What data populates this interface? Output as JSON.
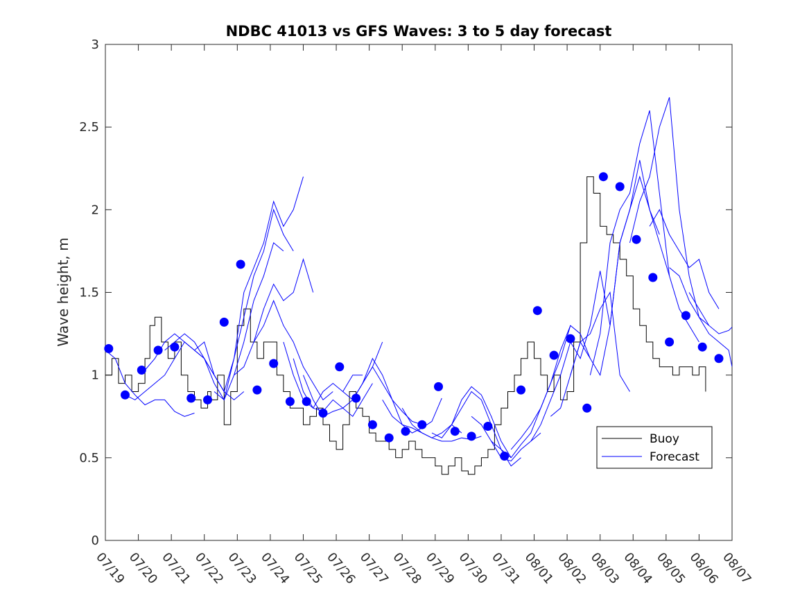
{
  "chart_data": {
    "type": "line",
    "title": "NDBC 41013 vs GFS Waves: 3 to 5 day forecast",
    "xlabel": "",
    "ylabel": "Wave height, m",
    "x_unit": "days since 07/19",
    "xlim": [
      0,
      19
    ],
    "ylim": [
      0,
      3
    ],
    "yticks": [
      0,
      0.5,
      1,
      1.5,
      2,
      2.5,
      3
    ],
    "xtick_labels": [
      "07/19",
      "07/20",
      "07/21",
      "07/22",
      "07/23",
      "07/24",
      "07/25",
      "07/26",
      "07/27",
      "07/28",
      "07/29",
      "07/30",
      "07/31",
      "08/01",
      "08/02",
      "08/03",
      "08/04",
      "08/05",
      "08/06",
      "08/07"
    ],
    "grid": false,
    "legend_position": "lower-right",
    "colors": {
      "buoy": "#000000",
      "forecast": "#0000ff",
      "points": "#0000ff"
    },
    "series": [
      {
        "name": "Buoy",
        "style": "line",
        "x": [
          0,
          0.2,
          0.4,
          0.6,
          0.8,
          1.0,
          1.2,
          1.35,
          1.5,
          1.7,
          1.9,
          2.1,
          2.3,
          2.5,
          2.7,
          2.9,
          3.1,
          3.2,
          3.4,
          3.6,
          3.8,
          4.0,
          4.2,
          4.4,
          4.6,
          4.8,
          5.0,
          5.2,
          5.4,
          5.6,
          5.8,
          6.0,
          6.2,
          6.4,
          6.6,
          6.8,
          7.0,
          7.2,
          7.4,
          7.6,
          7.8,
          8.0,
          8.2,
          8.4,
          8.6,
          8.8,
          9.0,
          9.2,
          9.4,
          9.6,
          9.8,
          10.0,
          10.2,
          10.4,
          10.6,
          10.8,
          11.0,
          11.2,
          11.4,
          11.6,
          11.8,
          12.0,
          12.2,
          12.4,
          12.6,
          12.8,
          13.0,
          13.2,
          13.4,
          13.6,
          13.8,
          14.0,
          14.2,
          14.4,
          14.6,
          14.8,
          15.0,
          15.2,
          15.4,
          15.6,
          15.8,
          16.0,
          16.2,
          16.4,
          16.6,
          16.8,
          17.0,
          17.2,
          17.4,
          17.6,
          17.8,
          18.0,
          18.2
        ],
        "y": [
          1.0,
          1.1,
          0.95,
          1.0,
          0.9,
          0.95,
          1.1,
          1.3,
          1.35,
          1.2,
          1.1,
          1.2,
          1.0,
          0.9,
          0.85,
          0.8,
          0.9,
          0.85,
          1.0,
          0.7,
          0.9,
          1.3,
          1.4,
          1.2,
          1.1,
          1.2,
          1.2,
          1.0,
          0.9,
          0.8,
          0.8,
          0.7,
          0.75,
          0.8,
          0.7,
          0.6,
          0.55,
          0.7,
          0.9,
          0.8,
          0.75,
          0.65,
          0.6,
          0.6,
          0.55,
          0.5,
          0.55,
          0.6,
          0.55,
          0.5,
          0.5,
          0.45,
          0.4,
          0.45,
          0.5,
          0.42,
          0.4,
          0.45,
          0.5,
          0.55,
          0.7,
          0.8,
          0.9,
          1.0,
          1.1,
          1.2,
          1.1,
          1.0,
          0.9,
          1.0,
          0.85,
          0.9,
          1.2,
          1.8,
          2.2,
          2.1,
          1.9,
          1.85,
          1.8,
          1.7,
          1.6,
          1.4,
          1.3,
          1.2,
          1.1,
          1.05,
          1.05,
          1.0,
          1.05,
          1.05,
          1.0,
          1.05,
          0.9
        ]
      },
      {
        "name": "Forecast",
        "style": "line",
        "segments": [
          {
            "x": [
              0,
              0.3,
              0.6,
              0.9,
              1.2,
              1.5,
              1.8,
              2.1,
              2.4,
              2.7
            ],
            "y": [
              1.15,
              1.1,
              0.95,
              0.88,
              0.82,
              0.85,
              0.85,
              0.78,
              0.75,
              0.77
            ]
          },
          {
            "x": [
              0.6,
              0.9,
              1.2,
              1.5,
              1.8,
              2.1,
              2.4,
              2.7,
              3.0
            ],
            "y": [
              0.88,
              0.85,
              0.9,
              0.95,
              1.0,
              1.1,
              1.2,
              1.15,
              1.1
            ]
          },
          {
            "x": [
              1.2,
              1.5,
              1.8,
              2.1,
              2.4,
              2.7,
              3.0,
              3.3,
              3.6
            ],
            "y": [
              1.03,
              1.1,
              1.2,
              1.25,
              1.2,
              1.15,
              1.1,
              1.0,
              0.9
            ]
          },
          {
            "x": [
              1.8,
              2.1,
              2.4,
              2.7,
              3.0,
              3.3,
              3.6,
              3.9,
              4.2
            ],
            "y": [
              1.15,
              1.2,
              1.25,
              1.2,
              1.1,
              1.0,
              0.9,
              0.85,
              0.9
            ]
          },
          {
            "x": [
              2.7,
              3.0,
              3.3,
              3.6,
              3.9,
              4.2,
              4.5,
              4.8,
              5.1,
              5.4,
              5.7,
              6.0
            ],
            "y": [
              1.15,
              1.2,
              1.0,
              0.9,
              1.1,
              1.5,
              1.65,
              1.8,
              2.05,
              1.9,
              2.0,
              2.2
            ]
          },
          {
            "x": [
              3.0,
              3.3,
              3.6,
              3.9,
              4.2,
              4.5,
              4.8,
              5.1,
              5.4,
              5.7
            ],
            "y": [
              1.1,
              0.95,
              0.85,
              1.1,
              1.35,
              1.6,
              1.75,
              2.0,
              1.85,
              1.75
            ]
          },
          {
            "x": [
              3.3,
              3.6,
              3.9,
              4.2,
              4.5,
              4.8,
              5.1,
              5.4
            ],
            "y": [
              0.9,
              0.85,
              1.0,
              1.2,
              1.45,
              1.6,
              1.8,
              1.75
            ]
          },
          {
            "x": [
              3.9,
              4.2,
              4.5,
              4.8,
              5.1,
              5.4,
              5.7,
              6.0,
              6.3
            ],
            "y": [
              1.0,
              1.05,
              1.2,
              1.4,
              1.55,
              1.45,
              1.5,
              1.7,
              1.5
            ]
          },
          {
            "x": [
              4.5,
              4.8,
              5.1,
              5.4,
              5.7,
              6.0,
              6.3,
              6.6,
              6.9
            ],
            "y": [
              1.2,
              1.3,
              1.45,
              1.3,
              1.2,
              1.05,
              0.95,
              0.85,
              0.9
            ]
          },
          {
            "x": [
              5.4,
              5.7,
              6.0,
              6.3,
              6.6,
              6.9,
              7.2,
              7.5,
              7.8
            ],
            "y": [
              1.2,
              1.0,
              0.85,
              0.8,
              0.9,
              0.95,
              0.9,
              1.0,
              1.0
            ]
          },
          {
            "x": [
              5.7,
              6.0,
              6.3,
              6.6,
              6.9,
              7.2,
              7.5,
              7.8,
              8.1
            ],
            "y": [
              1.1,
              0.9,
              0.8,
              0.78,
              0.85,
              0.8,
              0.75,
              0.85,
              0.95
            ]
          },
          {
            "x": [
              6.0,
              6.3,
              6.6,
              6.9,
              7.2,
              7.5,
              7.8,
              8.1,
              8.4
            ],
            "y": [
              1.0,
              0.85,
              0.75,
              0.78,
              0.8,
              0.85,
              0.95,
              1.05,
              1.2
            ]
          },
          {
            "x": [
              7.2,
              7.5,
              7.8,
              8.1,
              8.4,
              8.7,
              9.0,
              9.3,
              9.6
            ],
            "y": [
              0.9,
              0.85,
              0.95,
              1.1,
              1.0,
              0.85,
              0.78,
              0.72,
              0.7
            ]
          },
          {
            "x": [
              7.8,
              8.1,
              8.4,
              8.7,
              9.0,
              9.3,
              9.6,
              9.9,
              10.2
            ],
            "y": [
              0.95,
              1.05,
              0.95,
              0.85,
              0.7,
              0.65,
              0.68,
              0.72,
              0.86
            ]
          },
          {
            "x": [
              8.4,
              8.7,
              9.0,
              9.3,
              9.6,
              9.9,
              10.2,
              10.5,
              10.8
            ],
            "y": [
              0.85,
              0.75,
              0.7,
              0.68,
              0.65,
              0.62,
              0.65,
              0.7,
              0.65
            ]
          },
          {
            "x": [
              9.0,
              9.3,
              9.6,
              9.9,
              10.2,
              10.5,
              10.8,
              11.1,
              11.4
            ],
            "y": [
              0.8,
              0.7,
              0.65,
              0.62,
              0.6,
              0.6,
              0.62,
              0.61,
              0.63
            ]
          },
          {
            "x": [
              9.9,
              10.2,
              10.5,
              10.8,
              11.1,
              11.4,
              11.7,
              12.0,
              12.3
            ],
            "y": [
              0.65,
              0.62,
              0.7,
              0.85,
              0.93,
              0.88,
              0.75,
              0.6,
              0.5
            ]
          },
          {
            "x": [
              10.5,
              10.8,
              11.1,
              11.4,
              11.7,
              12.0,
              12.3,
              12.6
            ],
            "y": [
              0.7,
              0.8,
              0.9,
              0.85,
              0.7,
              0.55,
              0.45,
              0.5
            ]
          },
          {
            "x": [
              11.1,
              11.4,
              11.7,
              12.0,
              12.3,
              12.6,
              12.9,
              13.2
            ],
            "y": [
              0.75,
              0.7,
              0.6,
              0.5,
              0.48,
              0.55,
              0.6,
              0.65
            ]
          },
          {
            "x": [
              11.7,
              12.0,
              12.3,
              12.6,
              12.9,
              13.2,
              13.5,
              13.8,
              14.1
            ],
            "y": [
              0.6,
              0.55,
              0.5,
              0.58,
              0.65,
              0.8,
              0.95,
              1.1,
              1.3
            ]
          },
          {
            "x": [
              12.3,
              12.6,
              12.9,
              13.2,
              13.5,
              13.8,
              14.1,
              14.4,
              14.7
            ],
            "y": [
              0.55,
              0.62,
              0.7,
              0.8,
              0.95,
              1.15,
              1.3,
              1.25,
              1.1
            ]
          },
          {
            "x": [
              12.9,
              13.2,
              13.5,
              13.8,
              14.1,
              14.4,
              14.7,
              15.0,
              15.3
            ],
            "y": [
              0.6,
              0.7,
              0.85,
              1.0,
              1.2,
              1.1,
              1.3,
              1.63,
              1.3
            ]
          },
          {
            "x": [
              13.5,
              13.8,
              14.1,
              14.4,
              14.7,
              15.0,
              15.3,
              15.6,
              15.9
            ],
            "y": [
              0.75,
              0.8,
              1.0,
              1.2,
              1.25,
              1.4,
              1.5,
              1.0,
              0.9
            ]
          },
          {
            "x": [
              14.1,
              14.4,
              14.7,
              15.0,
              15.3,
              15.6,
              15.9,
              16.2,
              16.5,
              16.8
            ],
            "y": [
              1.0,
              1.2,
              1.1,
              1.0,
              1.3,
              1.8,
              2.0,
              2.2,
              2.0,
              1.85
            ]
          },
          {
            "x": [
              14.7,
              15.0,
              15.3,
              15.6,
              15.9,
              16.2,
              16.5,
              16.8,
              17.1
            ],
            "y": [
              1.0,
              1.25,
              1.8,
              2.0,
              2.1,
              2.4,
              2.6,
              2.1,
              1.6
            ]
          },
          {
            "x": [
              15.3,
              15.6,
              15.9,
              16.2,
              16.5,
              16.8,
              17.1,
              17.4,
              17.7,
              18.0
            ],
            "y": [
              1.3,
              1.8,
              2.0,
              2.3,
              2.0,
              1.8,
              1.6,
              1.4,
              1.3,
              1.2
            ]
          },
          {
            "x": [
              15.9,
              16.2,
              16.5,
              16.8,
              17.1,
              17.4,
              17.7,
              18.0,
              18.3
            ],
            "y": [
              1.8,
              2.05,
              2.2,
              2.5,
              2.68,
              2.0,
              1.6,
              1.35,
              1.3
            ]
          },
          {
            "x": [
              16.5,
              16.8,
              17.1,
              17.4,
              17.7,
              18.0,
              18.3,
              18.6
            ],
            "y": [
              1.9,
              2.0,
              1.85,
              1.75,
              1.65,
              1.7,
              1.5,
              1.4
            ]
          },
          {
            "x": [
              17.1,
              17.4,
              17.7,
              18.0,
              18.3,
              18.6,
              18.9,
              19.0
            ],
            "y": [
              1.65,
              1.6,
              1.45,
              1.35,
              1.25,
              1.2,
              1.15,
              1.05
            ]
          },
          {
            "x": [
              17.7,
              18.0,
              18.3,
              18.6,
              18.9,
              19.0
            ],
            "y": [
              1.5,
              1.4,
              1.3,
              1.25,
              1.27,
              1.29
            ]
          }
        ]
      },
      {
        "name": "",
        "style": "markers",
        "x": [
          0.1,
          0.6,
          1.1,
          1.6,
          2.1,
          2.6,
          3.1,
          3.6,
          4.1,
          4.6,
          5.1,
          5.6,
          6.1,
          6.6,
          7.1,
          7.6,
          8.1,
          8.6,
          9.1,
          9.6,
          10.1,
          10.6,
          11.1,
          11.6,
          12.1,
          12.6,
          13.1,
          13.6,
          14.1,
          14.6,
          15.1,
          15.6,
          16.1,
          16.6,
          17.1,
          17.6,
          18.1,
          18.6
        ],
        "y": [
          1.16,
          0.88,
          1.03,
          1.15,
          1.17,
          0.86,
          0.85,
          1.32,
          1.67,
          0.91,
          1.07,
          0.84,
          0.84,
          0.77,
          1.05,
          0.86,
          0.7,
          0.62,
          0.66,
          0.7,
          0.93,
          0.66,
          0.63,
          0.69,
          0.51,
          0.91,
          1.39,
          1.12,
          1.22,
          0.8,
          2.2,
          2.14,
          1.82,
          1.59,
          1.2,
          1.36,
          1.17,
          1.1
        ]
      }
    ]
  }
}
